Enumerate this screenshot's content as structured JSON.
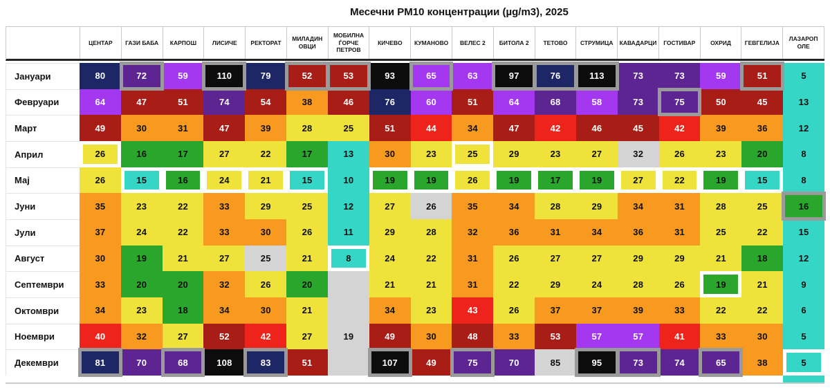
{
  "title": "Месечни PM10 концентрации (µg/m3), 2025",
  "chart_data": {
    "type": "heatmap",
    "title": "Месечни PM10 концентрации (µg/m3), 2025",
    "unit": "µg/m3",
    "columns": [
      "ЦЕНТАР",
      "ГАЗИ БАБА",
      "КАРПОШ",
      "ЛИСИЧЕ",
      "РЕКТОРАТ",
      "МИЛАДИН ОВЦИ",
      "МОБИЛНА ЃОРЧЕ ПЕТРОВ",
      "КИЧЕВО",
      "КУМАНОВО",
      "ВЕЛЕС 2",
      "БИТОЛА 2",
      "ТЕТОВО",
      "СТРУМИЦА",
      "КАВАДАРЦИ",
      "ГОСТИВАР",
      "ОХРИД",
      "ГЕВГЕЛИЈА",
      "ЛАЗАРОП ОЛЕ"
    ],
    "rows": [
      "Јануари",
      "Февруари",
      "Март",
      "Април",
      "Мај",
      "Јуни",
      "Јули",
      "Август",
      "Септември",
      "Октомври",
      "Ноември",
      "Декември"
    ],
    "values": [
      [
        80,
        72,
        59,
        110,
        79,
        52,
        53,
        93,
        65,
        63,
        97,
        76,
        113,
        73,
        73,
        59,
        51,
        5
      ],
      [
        64,
        47,
        51,
        74,
        54,
        38,
        46,
        76,
        60,
        51,
        64,
        68,
        58,
        73,
        75,
        50,
        45,
        13
      ],
      [
        49,
        30,
        31,
        47,
        39,
        28,
        25,
        51,
        44,
        34,
        47,
        42,
        46,
        45,
        42,
        39,
        36,
        12
      ],
      [
        26,
        16,
        17,
        27,
        22,
        17,
        13,
        30,
        23,
        25,
        29,
        23,
        27,
        32,
        26,
        23,
        20,
        8
      ],
      [
        26,
        15,
        16,
        24,
        21,
        15,
        10,
        19,
        19,
        26,
        19,
        17,
        19,
        27,
        22,
        19,
        15,
        8
      ],
      [
        35,
        23,
        22,
        33,
        29,
        25,
        12,
        27,
        26,
        35,
        34,
        28,
        29,
        34,
        31,
        28,
        25,
        16
      ],
      [
        37,
        24,
        22,
        33,
        30,
        26,
        11,
        29,
        28,
        32,
        36,
        31,
        34,
        36,
        31,
        25,
        22,
        15
      ],
      [
        30,
        19,
        21,
        27,
        25,
        21,
        8,
        24,
        22,
        31,
        26,
        27,
        27,
        29,
        29,
        21,
        18,
        12
      ],
      [
        33,
        20,
        20,
        32,
        26,
        20,
        null,
        21,
        21,
        31,
        22,
        29,
        24,
        28,
        26,
        19,
        21,
        9
      ],
      [
        34,
        23,
        18,
        34,
        30,
        21,
        null,
        34,
        23,
        43,
        26,
        37,
        37,
        39,
        33,
        22,
        22,
        6
      ],
      [
        40,
        32,
        27,
        52,
        42,
        27,
        19,
        49,
        30,
        48,
        33,
        53,
        57,
        57,
        41,
        33,
        30,
        5
      ],
      [
        81,
        70,
        68,
        108,
        83,
        51,
        null,
        107,
        49,
        75,
        70,
        85,
        95,
        73,
        74,
        65,
        38,
        5
      ]
    ]
  },
  "heatmap": {
    "columns": [
      "ЦЕНТАР",
      "ГАЗИ БАБА",
      "КАРПОШ",
      "ЛИСИЧЕ",
      "РЕКТОРАТ",
      "МИЛАДИН ОВЦИ",
      "МОБИЛНА ЃОРЧЕ ПЕТРОВ",
      "КИЧЕВО",
      "КУМАНОВО",
      "ВЕЛЕС 2",
      "БИТОЛА 2",
      "ТЕТОВО",
      "СТРУМИЦА",
      "КАВАДАРЦИ",
      "ГОСТИВАР",
      "ОХРИД",
      "ГЕВГЕЛИЈА",
      "ЛАЗАРОП ОЛЕ"
    ],
    "months": [
      "Јануари",
      "Февруари",
      "Март",
      "Април",
      "Мај",
      "Јуни",
      "Јули",
      "Август",
      "Септември",
      "Октомври",
      "Ноември",
      "Декември"
    ],
    "cells": [
      [
        [
          80,
          "navy",
          ""
        ],
        [
          72,
          "darkpurple",
          "g"
        ],
        [
          59,
          "brightpurple",
          ""
        ],
        [
          110,
          "black",
          "g"
        ],
        [
          79,
          "navy",
          ""
        ],
        [
          52,
          "darkred",
          "g"
        ],
        [
          53,
          "darkred",
          "g"
        ],
        [
          93,
          "black",
          ""
        ],
        [
          65,
          "brightpurple",
          "g"
        ],
        [
          63,
          "brightpurple",
          ""
        ],
        [
          97,
          "black",
          "g"
        ],
        [
          76,
          "navy",
          "g"
        ],
        [
          113,
          "black",
          "g"
        ],
        [
          73,
          "darkpurple",
          ""
        ],
        [
          73,
          "darkpurple",
          ""
        ],
        [
          59,
          "brightpurple",
          ""
        ],
        [
          51,
          "darkred",
          "g"
        ],
        [
          5,
          "turquoise",
          ""
        ]
      ],
      [
        [
          64,
          "brightpurple",
          ""
        ],
        [
          47,
          "darkred",
          ""
        ],
        [
          51,
          "darkred",
          ""
        ],
        [
          74,
          "darkpurple",
          ""
        ],
        [
          54,
          "darkred",
          ""
        ],
        [
          38,
          "orange",
          ""
        ],
        [
          46,
          "darkred",
          ""
        ],
        [
          76,
          "navy",
          ""
        ],
        [
          60,
          "brightpurple",
          ""
        ],
        [
          51,
          "darkred",
          ""
        ],
        [
          64,
          "brightpurple",
          ""
        ],
        [
          68,
          "darkpurple",
          ""
        ],
        [
          58,
          "brightpurple",
          ""
        ],
        [
          73,
          "darkpurple",
          ""
        ],
        [
          75,
          "darkpurple",
          "g"
        ],
        [
          50,
          "darkred",
          ""
        ],
        [
          45,
          "darkred",
          ""
        ],
        [
          13,
          "turquoise",
          ""
        ]
      ],
      [
        [
          49,
          "darkred",
          ""
        ],
        [
          30,
          "orange",
          ""
        ],
        [
          31,
          "orange",
          ""
        ],
        [
          47,
          "darkred",
          ""
        ],
        [
          39,
          "orange",
          ""
        ],
        [
          28,
          "yellow",
          ""
        ],
        [
          25,
          "yellow",
          ""
        ],
        [
          51,
          "darkred",
          ""
        ],
        [
          44,
          "red",
          ""
        ],
        [
          34,
          "orange",
          ""
        ],
        [
          47,
          "darkred",
          ""
        ],
        [
          42,
          "red",
          ""
        ],
        [
          46,
          "darkred",
          ""
        ],
        [
          45,
          "darkred",
          ""
        ],
        [
          42,
          "red",
          ""
        ],
        [
          39,
          "orange",
          ""
        ],
        [
          36,
          "orange",
          ""
        ],
        [
          12,
          "turquoise",
          ""
        ]
      ],
      [
        [
          26,
          "yellow",
          "w"
        ],
        [
          16,
          "green",
          ""
        ],
        [
          17,
          "green",
          ""
        ],
        [
          27,
          "yellow",
          ""
        ],
        [
          22,
          "yellow",
          ""
        ],
        [
          17,
          "green",
          ""
        ],
        [
          13,
          "turquoise",
          ""
        ],
        [
          30,
          "orange",
          ""
        ],
        [
          23,
          "yellow",
          ""
        ],
        [
          25,
          "yellow",
          "w"
        ],
        [
          29,
          "yellow",
          ""
        ],
        [
          23,
          "yellow",
          ""
        ],
        [
          27,
          "yellow",
          ""
        ],
        [
          32,
          "gray",
          ""
        ],
        [
          26,
          "yellow",
          ""
        ],
        [
          23,
          "yellow",
          ""
        ],
        [
          20,
          "green",
          ""
        ],
        [
          8,
          "turquoise",
          ""
        ]
      ],
      [
        [
          26,
          "yellow",
          ""
        ],
        [
          15,
          "turquoise",
          "w"
        ],
        [
          16,
          "green",
          "w"
        ],
        [
          24,
          "yellow",
          "w"
        ],
        [
          21,
          "yellow",
          "w"
        ],
        [
          15,
          "turquoise",
          "w"
        ],
        [
          10,
          "turquoise",
          ""
        ],
        [
          19,
          "green",
          "w"
        ],
        [
          19,
          "green",
          "w"
        ],
        [
          26,
          "yellow",
          "w"
        ],
        [
          19,
          "green",
          "w"
        ],
        [
          17,
          "green",
          "w"
        ],
        [
          19,
          "green",
          "w"
        ],
        [
          27,
          "yellow",
          "w"
        ],
        [
          22,
          "yellow",
          "w"
        ],
        [
          19,
          "green",
          "w"
        ],
        [
          15,
          "turquoise",
          "w"
        ],
        [
          8,
          "turquoise",
          ""
        ]
      ],
      [
        [
          35,
          "orange",
          ""
        ],
        [
          23,
          "yellow",
          ""
        ],
        [
          22,
          "yellow",
          ""
        ],
        [
          33,
          "orange",
          ""
        ],
        [
          29,
          "yellow",
          ""
        ],
        [
          25,
          "yellow",
          ""
        ],
        [
          12,
          "turquoise",
          ""
        ],
        [
          27,
          "yellow",
          ""
        ],
        [
          26,
          "gray",
          ""
        ],
        [
          35,
          "orange",
          ""
        ],
        [
          34,
          "orange",
          ""
        ],
        [
          28,
          "yellow",
          ""
        ],
        [
          29,
          "yellow",
          ""
        ],
        [
          34,
          "orange",
          ""
        ],
        [
          31,
          "orange",
          ""
        ],
        [
          28,
          "yellow",
          ""
        ],
        [
          25,
          "yellow",
          ""
        ],
        [
          16,
          "green",
          "g"
        ]
      ],
      [
        [
          37,
          "orange",
          ""
        ],
        [
          24,
          "yellow",
          ""
        ],
        [
          22,
          "yellow",
          ""
        ],
        [
          33,
          "orange",
          ""
        ],
        [
          30,
          "orange",
          ""
        ],
        [
          26,
          "yellow",
          ""
        ],
        [
          11,
          "turquoise",
          ""
        ],
        [
          29,
          "yellow",
          ""
        ],
        [
          28,
          "yellow",
          ""
        ],
        [
          32,
          "orange",
          ""
        ],
        [
          36,
          "orange",
          ""
        ],
        [
          31,
          "orange",
          ""
        ],
        [
          34,
          "orange",
          ""
        ],
        [
          36,
          "orange",
          ""
        ],
        [
          31,
          "orange",
          ""
        ],
        [
          25,
          "yellow",
          ""
        ],
        [
          22,
          "yellow",
          ""
        ],
        [
          15,
          "turquoise",
          ""
        ]
      ],
      [
        [
          30,
          "orange",
          ""
        ],
        [
          19,
          "green",
          ""
        ],
        [
          21,
          "yellow",
          ""
        ],
        [
          27,
          "yellow",
          ""
        ],
        [
          25,
          "gray",
          ""
        ],
        [
          21,
          "yellow",
          ""
        ],
        [
          8,
          "turquoise",
          "w"
        ],
        [
          24,
          "yellow",
          ""
        ],
        [
          22,
          "yellow",
          ""
        ],
        [
          31,
          "orange",
          ""
        ],
        [
          26,
          "yellow",
          ""
        ],
        [
          27,
          "yellow",
          ""
        ],
        [
          27,
          "yellow",
          ""
        ],
        [
          29,
          "yellow",
          ""
        ],
        [
          29,
          "yellow",
          ""
        ],
        [
          21,
          "yellow",
          ""
        ],
        [
          18,
          "green",
          ""
        ],
        [
          12,
          "turquoise",
          ""
        ]
      ],
      [
        [
          33,
          "orange",
          ""
        ],
        [
          20,
          "green",
          ""
        ],
        [
          20,
          "green",
          ""
        ],
        [
          32,
          "orange",
          ""
        ],
        [
          26,
          "yellow",
          ""
        ],
        [
          20,
          "green",
          ""
        ],
        [
          "",
          "gray",
          ""
        ],
        [
          21,
          "yellow",
          ""
        ],
        [
          21,
          "yellow",
          ""
        ],
        [
          31,
          "orange",
          ""
        ],
        [
          22,
          "yellow",
          ""
        ],
        [
          29,
          "yellow",
          ""
        ],
        [
          24,
          "yellow",
          ""
        ],
        [
          28,
          "yellow",
          ""
        ],
        [
          26,
          "yellow",
          ""
        ],
        [
          19,
          "green",
          "w"
        ],
        [
          21,
          "yellow",
          ""
        ],
        [
          9,
          "turquoise",
          ""
        ]
      ],
      [
        [
          34,
          "orange",
          ""
        ],
        [
          23,
          "yellow",
          ""
        ],
        [
          18,
          "green",
          ""
        ],
        [
          34,
          "orange",
          ""
        ],
        [
          30,
          "orange",
          ""
        ],
        [
          21,
          "yellow",
          ""
        ],
        [
          "",
          "gray",
          ""
        ],
        [
          34,
          "orange",
          ""
        ],
        [
          23,
          "yellow",
          ""
        ],
        [
          43,
          "red",
          ""
        ],
        [
          26,
          "yellow",
          ""
        ],
        [
          37,
          "orange",
          ""
        ],
        [
          37,
          "orange",
          ""
        ],
        [
          39,
          "orange",
          ""
        ],
        [
          33,
          "orange",
          ""
        ],
        [
          22,
          "yellow",
          ""
        ],
        [
          22,
          "yellow",
          ""
        ],
        [
          6,
          "turquoise",
          ""
        ]
      ],
      [
        [
          40,
          "red",
          ""
        ],
        [
          32,
          "orange",
          ""
        ],
        [
          27,
          "yellow",
          ""
        ],
        [
          52,
          "darkred",
          ""
        ],
        [
          42,
          "red",
          ""
        ],
        [
          27,
          "yellow",
          ""
        ],
        [
          19,
          "gray",
          ""
        ],
        [
          49,
          "darkred",
          ""
        ],
        [
          30,
          "orange",
          ""
        ],
        [
          48,
          "darkred",
          ""
        ],
        [
          33,
          "orange",
          ""
        ],
        [
          53,
          "darkred",
          ""
        ],
        [
          57,
          "brightpurple",
          ""
        ],
        [
          57,
          "brightpurple",
          ""
        ],
        [
          41,
          "red",
          ""
        ],
        [
          33,
          "orange",
          ""
        ],
        [
          30,
          "orange",
          ""
        ],
        [
          5,
          "turquoise",
          ""
        ]
      ],
      [
        [
          81,
          "navy",
          "g"
        ],
        [
          70,
          "darkpurple",
          ""
        ],
        [
          68,
          "darkpurple",
          "g"
        ],
        [
          108,
          "black",
          ""
        ],
        [
          83,
          "navy",
          "g"
        ],
        [
          51,
          "darkred",
          ""
        ],
        [
          "",
          "gray",
          ""
        ],
        [
          107,
          "black",
          "g"
        ],
        [
          49,
          "darkred",
          ""
        ],
        [
          75,
          "darkpurple",
          "g"
        ],
        [
          70,
          "darkpurple",
          ""
        ],
        [
          85,
          "gray",
          ""
        ],
        [
          95,
          "black",
          "g"
        ],
        [
          73,
          "darkpurple",
          "g"
        ],
        [
          74,
          "darkpurple",
          ""
        ],
        [
          65,
          "darkpurple",
          "g"
        ],
        [
          38,
          "orange",
          ""
        ],
        [
          5,
          "turquoise",
          "w"
        ]
      ]
    ]
  },
  "colors": {
    "turquoise": "#35d6c5",
    "green": "#2aa62d",
    "yellow": "#efe23a",
    "orange": "#f89a20",
    "red": "#ee241c",
    "darkred": "#a81d15",
    "brightpurple": "#a438f0",
    "darkpurple": "#5c2591",
    "navy": "#1e2766",
    "black": "#0c0c0c",
    "gray": "#d4d4d4",
    "frame_gray": "#9a9a9a",
    "frame_white": "#ffffff"
  },
  "light_text_colors": [
    "navy",
    "black",
    "darkpurple",
    "brightpurple",
    "darkred",
    "red"
  ]
}
